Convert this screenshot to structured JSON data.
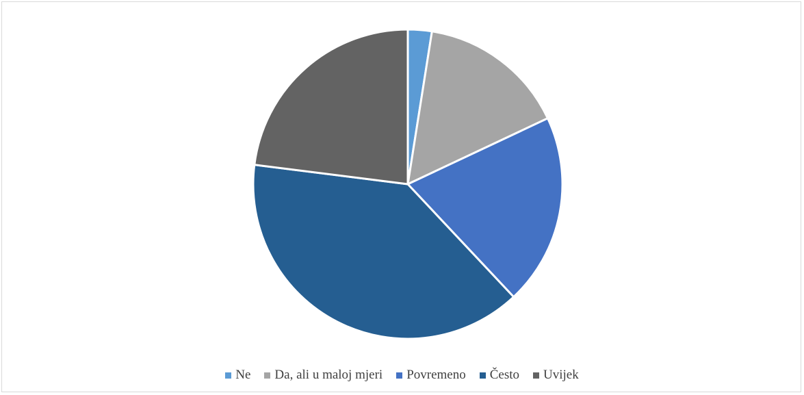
{
  "chart_data": {
    "type": "pie",
    "title": "",
    "categories": [
      "Ne",
      "Da, ali u maloj mjeri",
      "Povremeno",
      "Često",
      "Uvijek"
    ],
    "values": [
      2.5,
      15.5,
      20,
      39,
      23
    ],
    "unit": "percent",
    "colors": [
      "#5B9BD5",
      "#A5A5A5",
      "#4472C4",
      "#255E91",
      "#636363"
    ],
    "start_angle": "12 o'clock",
    "direction": "clockwise",
    "legend_position": "bottom"
  }
}
